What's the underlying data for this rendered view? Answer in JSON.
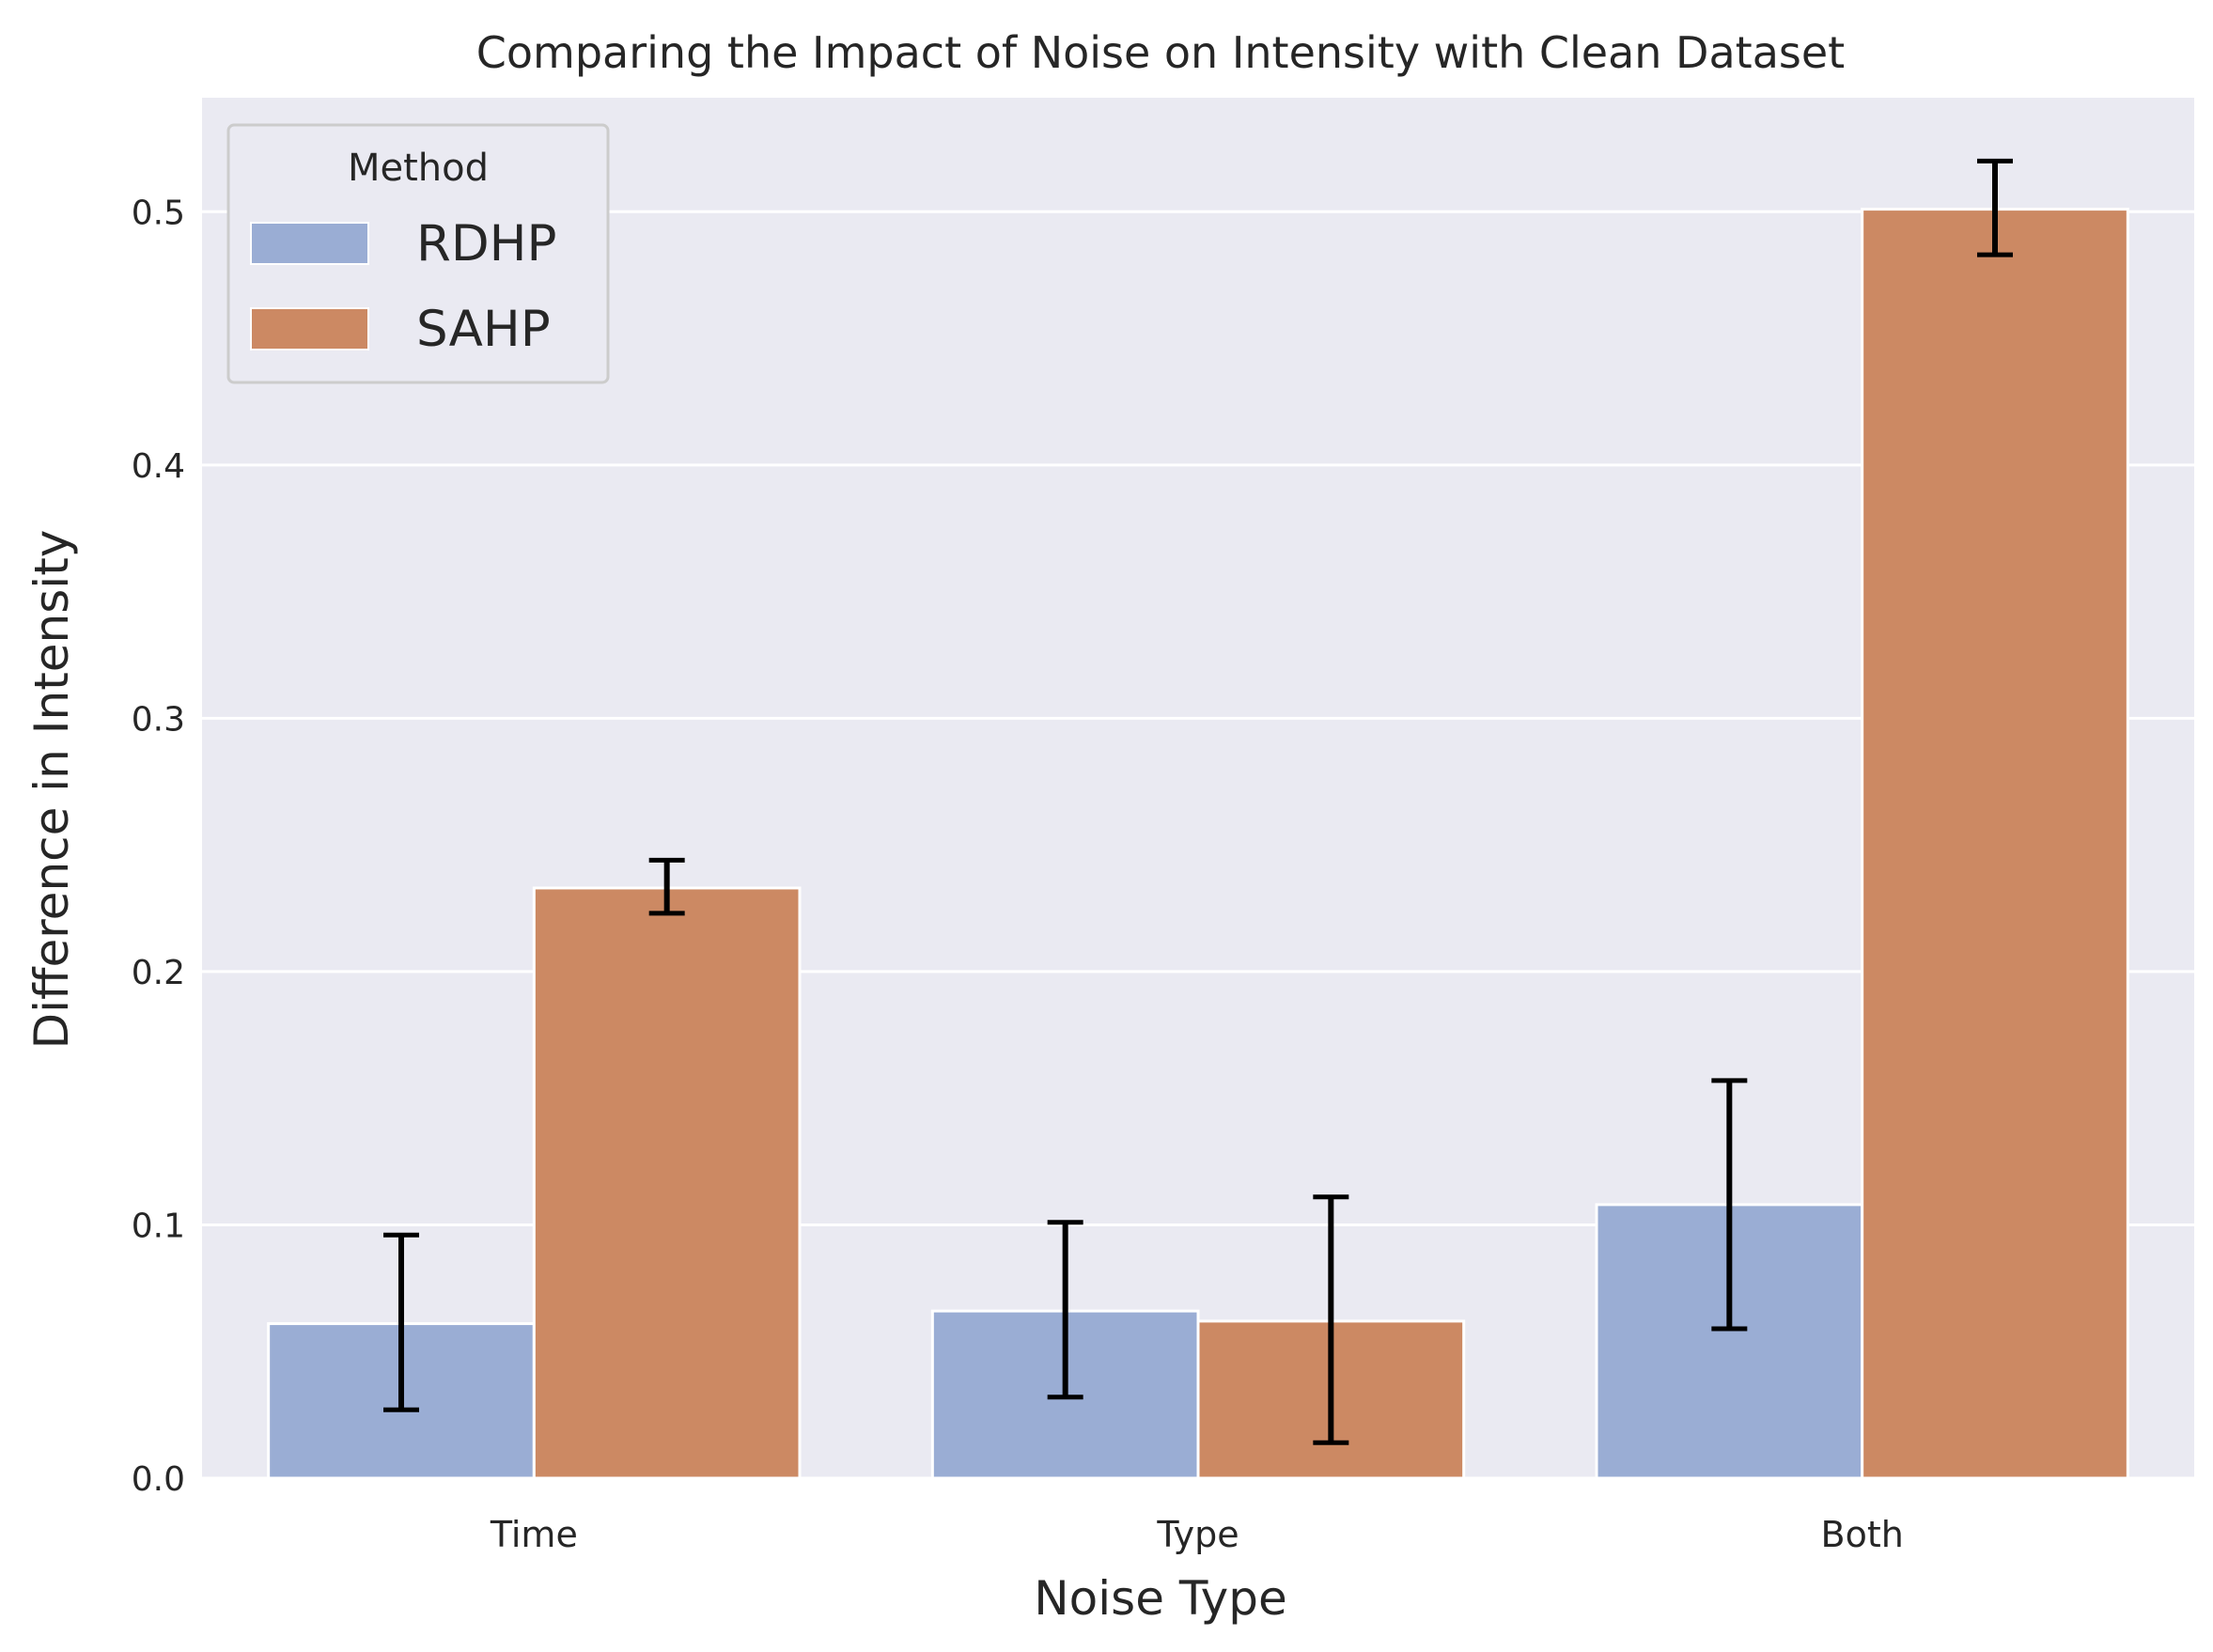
{
  "chart_data": {
    "type": "bar",
    "title": "Comparing the Impact of Noise on Intensity with Clean Dataset",
    "xlabel": "Noise Type",
    "ylabel": "Difference in Intensity",
    "categories": [
      "Time",
      "Type",
      "Both"
    ],
    "ylim": [
      0,
      0.545
    ],
    "yticks": [
      0.0,
      0.1,
      0.2,
      0.3,
      0.4,
      0.5
    ],
    "ytick_labels": [
      "0.0",
      "0.1",
      "0.2",
      "0.3",
      "0.4",
      "0.5"
    ],
    "grid": true,
    "legend": {
      "title": "Method",
      "position": "top-left"
    },
    "series": [
      {
        "name": "RDHP",
        "color": "#9aadd4",
        "values": [
          0.061,
          0.066,
          0.108
        ],
        "err_low": [
          0.027,
          0.032,
          0.059
        ],
        "err_high": [
          0.096,
          0.101,
          0.157
        ]
      },
      {
        "name": "SAHP",
        "color": "#cc8963",
        "values": [
          0.233,
          0.062,
          0.501
        ],
        "err_low": [
          0.223,
          0.014,
          0.483
        ],
        "err_high": [
          0.244,
          0.111,
          0.52
        ]
      }
    ]
  }
}
